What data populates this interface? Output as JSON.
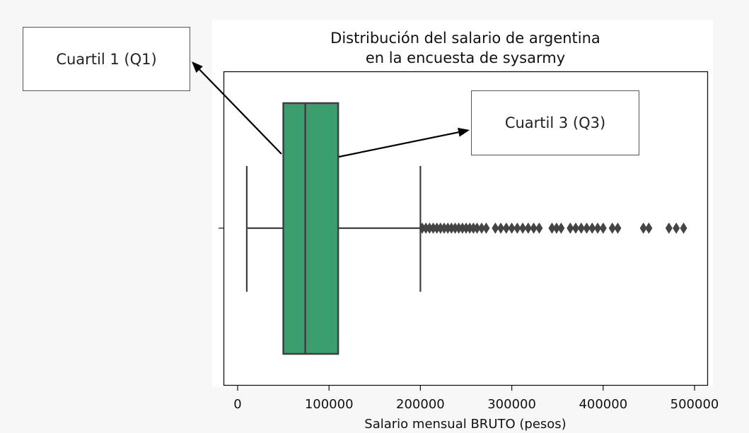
{
  "chart_data": {
    "type": "box",
    "title_line1": "Distribución del salario de argentina",
    "title_line2": "en la encuesta de sysarmy",
    "xlabel": "Salario mensual BRUTO (pesos)",
    "ylabel": "",
    "xlim": [
      -15000,
      515000
    ],
    "xticks": [
      0,
      100000,
      200000,
      300000,
      400000,
      500000
    ],
    "xtick_labels": [
      "0",
      "100000",
      "200000",
      "300000",
      "400000",
      "500000"
    ],
    "grid": false,
    "box": {
      "whisker_low": 10000,
      "q1": 50000,
      "median": 74000,
      "q3": 110000,
      "whisker_high": 200000,
      "fill_color": "#3a9e6e",
      "line_color": "#3f3f3f"
    },
    "outliers": [
      202000,
      206000,
      210000,
      214000,
      218000,
      222000,
      226000,
      230000,
      234000,
      238000,
      242000,
      246000,
      250000,
      254000,
      258000,
      262000,
      267000,
      272000,
      282000,
      288000,
      294000,
      300000,
      306000,
      312000,
      318000,
      324000,
      330000,
      344000,
      349000,
      354000,
      364000,
      370000,
      376000,
      382000,
      388000,
      394000,
      400000,
      410000,
      416000,
      444000,
      450000,
      472000,
      480000,
      488000
    ],
    "annotations": [
      {
        "text": "Cuartil 1 (Q1)",
        "points_to": "q1"
      },
      {
        "text": "Cuartil 3 (Q3)",
        "points_to": "q3"
      }
    ]
  }
}
